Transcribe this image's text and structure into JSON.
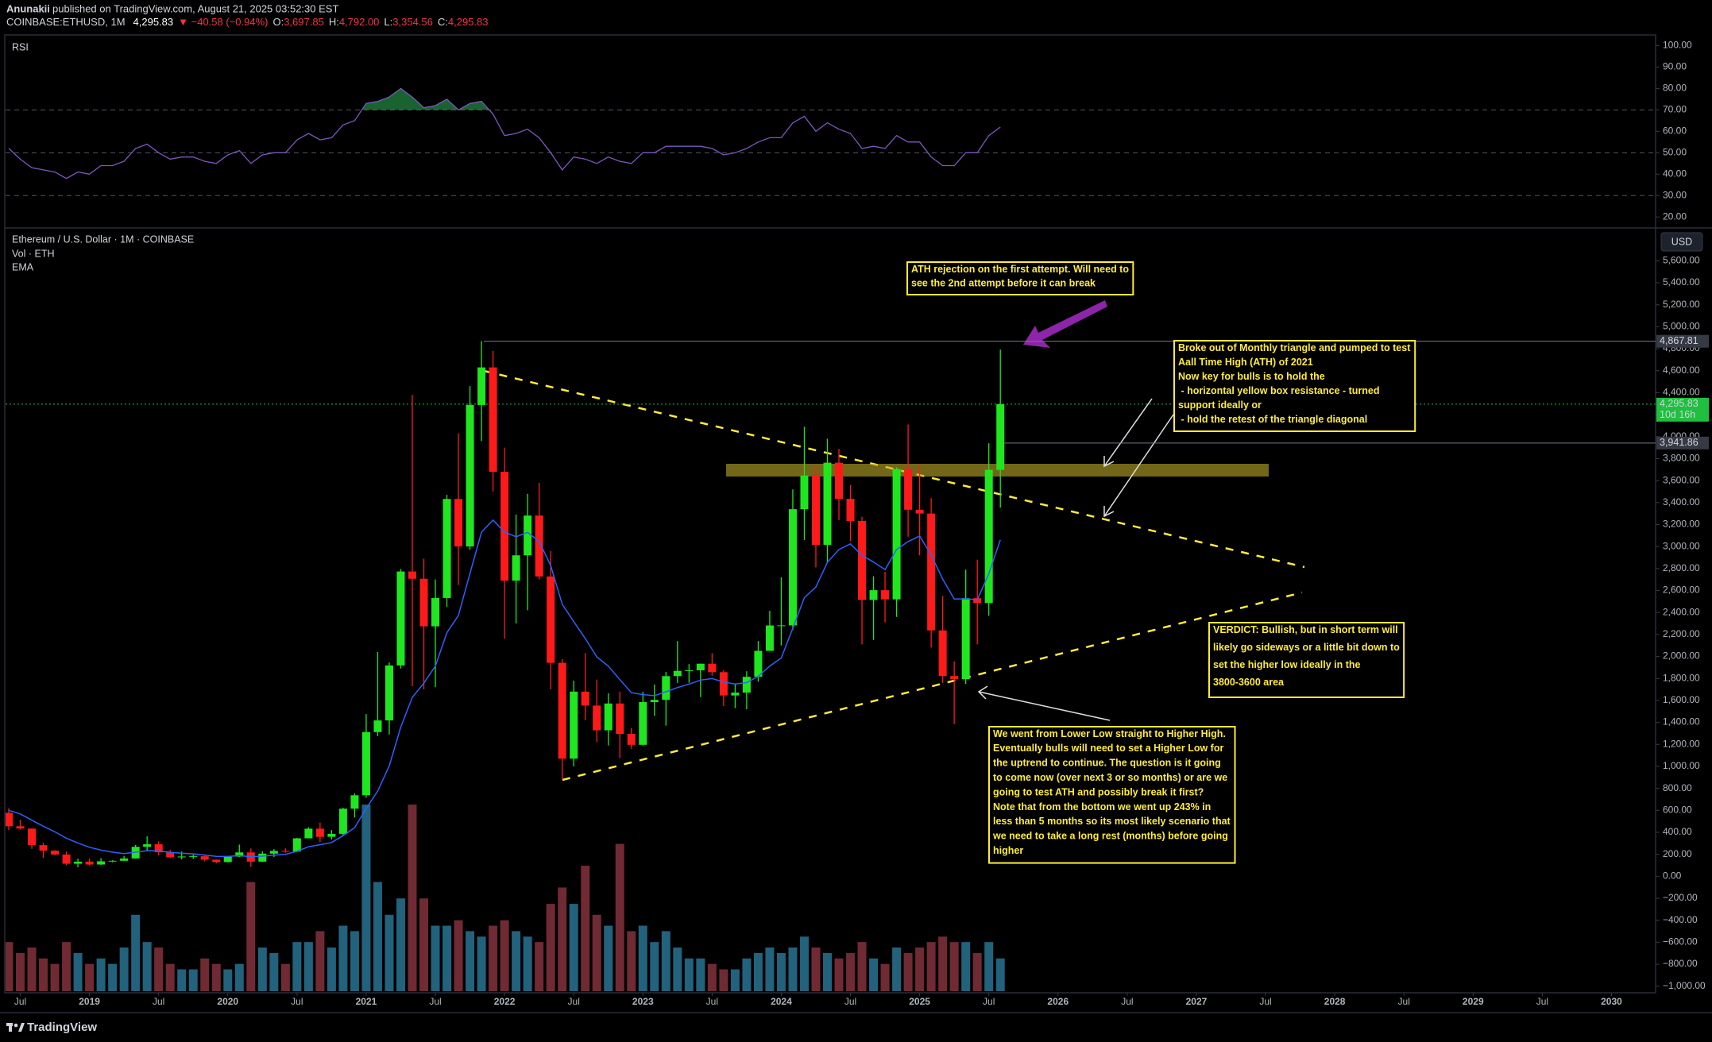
{
  "header": {
    "author": "Anunakii",
    "published": "published on TradingView.com, August 21, 2025 03:52:30 EST",
    "symbol": "COINBASE:ETHUSD, 1M",
    "last": "4,295.83",
    "change": "▼ −40.58 (−0.94%)",
    "ohlc": [
      {
        "label": "O:",
        "value": "3,697.85"
      },
      {
        "label": "H:",
        "value": "4,792.00"
      },
      {
        "label": "L:",
        "value": "3,354.56"
      },
      {
        "label": "C:",
        "value": "4,295.83"
      }
    ]
  },
  "footer": {
    "brand": "TradingView"
  },
  "chart_data": {
    "type": "candlestick",
    "title": "Ethereum / U.S. Dollar · 1M · COINBASE",
    "legend_items": [
      "Vol · ETH",
      "EMA"
    ],
    "currency": "USD",
    "up_color": "#1fe61f",
    "down_color": "#ff1a1a",
    "volume_up_color": "#2a7a9c",
    "volume_down_color": "#8c3441",
    "ema_color": "#2962ff",
    "x": [
      "2018-06",
      "2018-07",
      "2018-08",
      "2018-09",
      "2018-10",
      "2018-11",
      "2018-12",
      "2019-01",
      "2019-02",
      "2019-03",
      "2019-04",
      "2019-05",
      "2019-06",
      "2019-07",
      "2019-08",
      "2019-09",
      "2019-10",
      "2019-11",
      "2019-12",
      "2020-01",
      "2020-02",
      "2020-03",
      "2020-04",
      "2020-05",
      "2020-06",
      "2020-07",
      "2020-08",
      "2020-09",
      "2020-10",
      "2020-11",
      "2020-12",
      "2021-01",
      "2021-02",
      "2021-03",
      "2021-04",
      "2021-05",
      "2021-06",
      "2021-07",
      "2021-08",
      "2021-09",
      "2021-10",
      "2021-11",
      "2021-12",
      "2022-01",
      "2022-02",
      "2022-03",
      "2022-04",
      "2022-05",
      "2022-06",
      "2022-07",
      "2022-08",
      "2022-09",
      "2022-10",
      "2022-11",
      "2022-12",
      "2023-01",
      "2023-02",
      "2023-03",
      "2023-04",
      "2023-05",
      "2023-06",
      "2023-07",
      "2023-08",
      "2023-09",
      "2023-10",
      "2023-11",
      "2023-12",
      "2024-01",
      "2024-02",
      "2024-03",
      "2024-04",
      "2024-05",
      "2024-06",
      "2024-07",
      "2024-08",
      "2024-09",
      "2024-10",
      "2024-11",
      "2024-12",
      "2025-01",
      "2025-02",
      "2025-03",
      "2025-04",
      "2025-05",
      "2025-06",
      "2025-07",
      "2025-08"
    ],
    "open": [
      577,
      455,
      434,
      283,
      233,
      198,
      114,
      133,
      107,
      136,
      141,
      162,
      268,
      291,
      218,
      172,
      180,
      182,
      151,
      129,
      179,
      217,
      133,
      206,
      231,
      225,
      345,
      433,
      359,
      386,
      615,
      737,
      1312,
      1418,
      1918,
      2773,
      2707,
      2274,
      2532,
      3433,
      3001,
      4288,
      4630,
      3680,
      2690,
      2920,
      3282,
      2728,
      1942,
      1070,
      1680,
      1553,
      1328,
      1572,
      1295,
      1196,
      1585,
      1605,
      1821,
      1869,
      1874,
      1934,
      1857,
      1645,
      1671,
      1815,
      2051,
      2282,
      2283,
      3340,
      3646,
      3015,
      3763,
      3434,
      3232,
      2514,
      2603,
      2519,
      3705,
      3335,
      3300,
      2237,
      1822,
      1794,
      2530,
      2486,
      3697.85
    ],
    "high": [
      620,
      515,
      435,
      305,
      237,
      224,
      160,
      160,
      165,
      145,
      185,
      285,
      363,
      318,
      240,
      225,
      198,
      195,
      153,
      185,
      288,
      253,
      228,
      247,
      253,
      349,
      446,
      488,
      420,
      623,
      755,
      1475,
      2040,
      1945,
      2795,
      4380,
      2890,
      2700,
      3470,
      4030,
      4460,
      4870,
      4780,
      3900,
      3290,
      3480,
      3580,
      2960,
      1975,
      1780,
      2030,
      1790,
      1665,
      1680,
      1350,
      1680,
      1745,
      1860,
      2140,
      1930,
      1935,
      2030,
      1875,
      1755,
      1865,
      2140,
      2415,
      2720,
      3520,
      4090,
      3730,
      3980,
      3890,
      3560,
      3270,
      2730,
      2770,
      3720,
      4110,
      3745,
      3440,
      2550,
      1955,
      2790,
      2880,
      3940,
      4792
    ],
    "low": [
      420,
      425,
      250,
      167,
      190,
      100,
      82,
      100,
      102,
      128,
      140,
      160,
      230,
      190,
      165,
      153,
      158,
      136,
      118,
      126,
      175,
      86,
      130,
      176,
      215,
      220,
      345,
      310,
      335,
      370,
      535,
      714,
      1275,
      1290,
      1890,
      1730,
      1700,
      1720,
      2450,
      2650,
      2970,
      3960,
      3500,
      2160,
      2300,
      2420,
      2700,
      1700,
      880,
      1000,
      1420,
      1220,
      1190,
      1075,
      1160,
      1190,
      1460,
      1370,
      1760,
      1760,
      1630,
      1825,
      1550,
      1530,
      1520,
      1770,
      2050,
      2100,
      2240,
      3060,
      2810,
      2860,
      3240,
      3050,
      2110,
      2150,
      2310,
      2360,
      3090,
      2920,
      2080,
      1760,
      1385,
      1750,
      2110,
      2370,
      3354.56
    ],
    "close": [
      455,
      434,
      283,
      233,
      198,
      114,
      133,
      107,
      136,
      141,
      162,
      268,
      291,
      218,
      172,
      180,
      182,
      151,
      129,
      179,
      217,
      133,
      206,
      231,
      225,
      345,
      433,
      359,
      386,
      615,
      737,
      1312,
      1418,
      1918,
      2773,
      2707,
      2274,
      2532,
      3433,
      3001,
      4288,
      4630,
      3680,
      2690,
      2920,
      3282,
      2728,
      1942,
      1070,
      1680,
      1553,
      1328,
      1572,
      1295,
      1196,
      1585,
      1605,
      1821,
      1869,
      1874,
      1934,
      1857,
      1645,
      1671,
      1815,
      2051,
      2282,
      2283,
      3340,
      3646,
      3015,
      3763,
      3434,
      3232,
      2514,
      2603,
      2519,
      3705,
      3335,
      3300,
      2237,
      1822,
      1794,
      2530,
      2486,
      3697.85,
      4295.83
    ],
    "volume": [
      45,
      35,
      40,
      30,
      25,
      45,
      35,
      25,
      30,
      25,
      40,
      70,
      45,
      40,
      25,
      20,
      20,
      30,
      25,
      20,
      25,
      100,
      40,
      35,
      25,
      45,
      45,
      55,
      40,
      60,
      55,
      171,
      100,
      70,
      85,
      171,
      85,
      60,
      60,
      65,
      55,
      50,
      60,
      65,
      55,
      50,
      45,
      80,
      95,
      80,
      115,
      70,
      60,
      135,
      55,
      60,
      45,
      55,
      40,
      30,
      30,
      25,
      20,
      20,
      30,
      35,
      40,
      35,
      40,
      50,
      40,
      35,
      30,
      35,
      45,
      30,
      25,
      40,
      35,
      40,
      45,
      50,
      45,
      45,
      35,
      45,
      30
    ],
    "ema": [
      600,
      567,
      510,
      455,
      404,
      346,
      303,
      264,
      238,
      219,
      207,
      219,
      233,
      230,
      218,
      210,
      204,
      193,
      181,
      180,
      188,
      177,
      183,
      192,
      199,
      228,
      269,
      287,
      307,
      369,
      442,
      616,
      776,
      1005,
      1358,
      1628,
      1757,
      1912,
      2216,
      2373,
      2756,
      3131,
      3241,
      3131,
      3089,
      3128,
      3048,
      2827,
      2476,
      2317,
      2164,
      1997,
      1912,
      1789,
      1670,
      1653,
      1643,
      1679,
      1717,
      1748,
      1785,
      1799,
      1768,
      1749,
      1762,
      1820,
      1912,
      1986,
      2257,
      2535,
      2631,
      2857,
      2972,
      3024,
      2922,
      2858,
      2790,
      2973,
      3045,
      3096,
      2924,
      2704,
      2522,
      2524,
      2516,
      2753,
      3061
    ],
    "xlim": [
      "2018-06",
      "2030-04"
    ],
    "xticks": [
      {
        "value": "2018-07",
        "label": "Jul"
      },
      {
        "value": "2019-01",
        "label": "2019"
      },
      {
        "value": "2019-07",
        "label": "Jul"
      },
      {
        "value": "2020-01",
        "label": "2020"
      },
      {
        "value": "2020-07",
        "label": "Jul"
      },
      {
        "value": "2021-01",
        "label": "2021"
      },
      {
        "value": "2021-07",
        "label": "Jul"
      },
      {
        "value": "2022-01",
        "label": "2022"
      },
      {
        "value": "2022-07",
        "label": "Jul"
      },
      {
        "value": "2023-01",
        "label": "2023"
      },
      {
        "value": "2023-07",
        "label": "Jul"
      },
      {
        "value": "2024-01",
        "label": "2024"
      },
      {
        "value": "2024-07",
        "label": "Jul"
      },
      {
        "value": "2025-01",
        "label": "2025"
      },
      {
        "value": "2025-07",
        "label": "Jul"
      },
      {
        "value": "2026-01",
        "label": "2026"
      },
      {
        "value": "2026-07",
        "label": "Jul"
      },
      {
        "value": "2027-01",
        "label": "2027"
      },
      {
        "value": "2027-07",
        "label": "Jul"
      },
      {
        "value": "2028-01",
        "label": "2028"
      },
      {
        "value": "2028-07",
        "label": "Jul"
      },
      {
        "value": "2029-01",
        "label": "2029"
      },
      {
        "value": "2029-07",
        "label": "Jul"
      },
      {
        "value": "2030-01",
        "label": "2030"
      }
    ],
    "ylim": [
      -1060,
      5870
    ],
    "yticks": [
      {
        "value": 5600,
        "label": "5,600.00"
      },
      {
        "value": 5400,
        "label": "5,400.00"
      },
      {
        "value": 5200,
        "label": "5,200.00"
      },
      {
        "value": 5000,
        "label": "5,000.00"
      },
      {
        "value": 4800,
        "label": "4,800.00"
      },
      {
        "value": 4600,
        "label": "4,600.00"
      },
      {
        "value": 4400,
        "label": "4,400.00"
      },
      {
        "value": 4200,
        "label": "4,200.00"
      },
      {
        "value": 4000,
        "label": "4,000.00"
      },
      {
        "value": 3800,
        "label": "3,800.00"
      },
      {
        "value": 3600,
        "label": "3,600.00"
      },
      {
        "value": 3400,
        "label": "3,400.00"
      },
      {
        "value": 3200,
        "label": "3,200.00"
      },
      {
        "value": 3000,
        "label": "3,000.00"
      },
      {
        "value": 2800,
        "label": "2,800.00"
      },
      {
        "value": 2600,
        "label": "2,600.00"
      },
      {
        "value": 2400,
        "label": "2,400.00"
      },
      {
        "value": 2200,
        "label": "2,200.00"
      },
      {
        "value": 2000,
        "label": "2,000.00"
      },
      {
        "value": 1800,
        "label": "1,800.00"
      },
      {
        "value": 1600,
        "label": "1,600.00"
      },
      {
        "value": 1400,
        "label": "1,400.00"
      },
      {
        "value": 1200,
        "label": "1,200.00"
      },
      {
        "value": 1000,
        "label": "1,000.00"
      },
      {
        "value": 800,
        "label": "800.00"
      },
      {
        "value": 600,
        "label": "600.00"
      },
      {
        "value": 400,
        "label": "400.00"
      },
      {
        "value": 200,
        "label": "200.00"
      },
      {
        "value": 0,
        "label": "0.00"
      },
      {
        "value": -200,
        "label": "−200.00"
      },
      {
        "value": -400,
        "label": "−400.00"
      },
      {
        "value": -600,
        "label": "−600.00"
      },
      {
        "value": -800,
        "label": "−800.00"
      },
      {
        "value": -1000,
        "label": "−1,000.00"
      }
    ],
    "price_labels": [
      {
        "value": 4867.81,
        "label": "4,867.81",
        "color": "#363a45"
      },
      {
        "value": 4295.83,
        "label": "4,295.83",
        "sub": "10d 16h",
        "color": "#1fbf3f"
      },
      {
        "value": 3941.86,
        "label": "3,941.86",
        "color": "#363a45"
      }
    ],
    "rsi": {
      "title": "RSI",
      "color": "#7e57c2",
      "values": [
        52,
        47,
        43,
        42,
        41,
        38,
        41,
        40,
        44,
        44,
        46,
        52,
        54,
        50,
        47,
        48,
        48,
        46,
        45,
        49,
        51,
        45,
        49,
        50,
        50,
        56,
        59,
        56,
        57,
        63,
        65,
        73,
        74,
        76,
        80,
        76,
        71,
        72,
        75,
        70,
        73,
        74,
        68,
        58,
        59,
        61,
        57,
        50,
        42,
        48,
        47,
        45,
        48,
        46,
        45,
        50,
        50,
        53,
        53,
        53,
        53,
        52,
        49,
        50,
        52,
        55,
        57,
        57,
        64,
        67,
        60,
        64,
        61,
        59,
        52,
        53,
        52,
        58,
        55,
        55,
        48,
        44,
        44,
        50,
        50,
        58,
        62
      ],
      "ylim": [
        16,
        105
      ],
      "yticks": [
        {
          "value": 100,
          "label": "100.00"
        },
        {
          "value": 90,
          "label": "90.00"
        },
        {
          "value": 80,
          "label": "80.00"
        },
        {
          "value": 70,
          "label": "70.00"
        },
        {
          "value": 60,
          "label": "60.00"
        },
        {
          "value": 50,
          "label": "50.00"
        },
        {
          "value": 40,
          "label": "40.00"
        },
        {
          "value": 30,
          "label": "30.00"
        },
        {
          "value": 20,
          "label": "20.00"
        }
      ],
      "levels": [
        70,
        50,
        30
      ]
    },
    "annotations": [
      {
        "lines": [
          "ATH rejection on the first attempt. Will need to",
          "see the 2nd attempt before it can break"
        ]
      },
      {
        "lines": [
          "Broke out of Monthly triangle and pumped to test",
          "Aall Time High (ATH) of 2021",
          "Now key for bulls is to hold the",
          " - horizontal yellow box resistance - turned",
          "support ideally or",
          " - hold the retest of the triangle diagonal"
        ]
      },
      {
        "lines": [
          "VERDICT: Bullish, but in short term will",
          "likely go sideways or a little bit down to",
          "set the higher low ideally in the",
          "3800-3600 area"
        ]
      },
      {
        "lines": [
          "We went from Lower Low straight to Higher High.",
          "Eventually bulls will need to set a Higher Low for",
          "the uptrend to continue. The question is it going",
          "to come now (over next 3 or so months) or are we",
          "going to test ATH and possibly break it first?",
          "Note that from the bottom we went up 243% in",
          "less than 5 months so its most likely scenario that",
          "we need to take a long rest (months) before going",
          "higher"
        ]
      }
    ]
  }
}
